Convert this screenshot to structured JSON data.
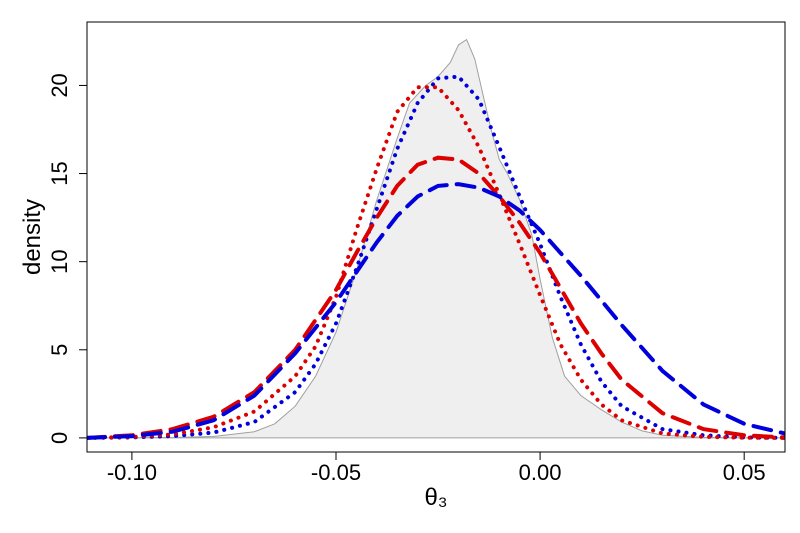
{
  "chart_data": {
    "type": "line",
    "title": "",
    "xlabel": "θ₃",
    "ylabel": "density",
    "xlim": [
      -0.111,
      0.06
    ],
    "ylim": [
      -0.8,
      23.6
    ],
    "xticks": [
      -0.1,
      -0.05,
      0.0,
      0.05
    ],
    "xtick_labels": [
      "-0.10",
      "-0.05",
      "0.00",
      "0.05"
    ],
    "yticks": [
      0,
      5,
      10,
      15,
      20
    ],
    "ytick_labels": [
      "0",
      "5",
      "10",
      "15",
      "20"
    ],
    "grid": false,
    "legend": "none",
    "series": [
      {
        "style": "filled-area",
        "color": "#efefef",
        "edge_color": "#a0a0a0",
        "x": [
          -0.111,
          -0.09,
          -0.08,
          -0.07,
          -0.065,
          -0.06,
          -0.055,
          -0.05,
          -0.045,
          -0.04,
          -0.035,
          -0.032,
          -0.028,
          -0.025,
          -0.022,
          -0.02,
          -0.018,
          -0.016,
          -0.014,
          -0.012,
          -0.01,
          -0.008,
          -0.005,
          -0.002,
          0.0,
          0.003,
          0.006,
          0.01,
          0.015,
          0.02,
          0.025,
          0.03,
          0.04,
          0.05,
          0.06
        ],
        "y": [
          0.0,
          0.02,
          0.08,
          0.35,
          0.8,
          1.8,
          3.5,
          6.0,
          9.5,
          13.5,
          17.0,
          19.0,
          20.0,
          20.5,
          21.3,
          22.3,
          22.6,
          21.5,
          19.5,
          17.5,
          15.8,
          15.0,
          13.5,
          11.5,
          9.0,
          5.7,
          3.5,
          2.4,
          1.6,
          0.9,
          0.4,
          0.15,
          0.03,
          0.0,
          0.0
        ]
      },
      {
        "style": "dotted",
        "color": "#0000dd",
        "x": [
          -0.111,
          -0.1,
          -0.09,
          -0.08,
          -0.07,
          -0.06,
          -0.055,
          -0.05,
          -0.045,
          -0.04,
          -0.035,
          -0.03,
          -0.025,
          -0.02,
          -0.015,
          -0.01,
          -0.005,
          0.0,
          0.005,
          0.01,
          0.015,
          0.02,
          0.03,
          0.04,
          0.05,
          0.06
        ],
        "y": [
          0.0,
          0.03,
          0.1,
          0.3,
          0.9,
          2.6,
          4.2,
          6.5,
          9.6,
          13.0,
          16.4,
          19.0,
          20.4,
          20.5,
          19.2,
          16.5,
          13.7,
          11.0,
          8.0,
          5.3,
          3.2,
          1.8,
          0.5,
          0.15,
          0.03,
          0.0
        ]
      },
      {
        "style": "dotted",
        "color": "#dd0000",
        "x": [
          -0.111,
          -0.1,
          -0.09,
          -0.08,
          -0.07,
          -0.06,
          -0.055,
          -0.05,
          -0.045,
          -0.04,
          -0.035,
          -0.03,
          -0.025,
          -0.02,
          -0.015,
          -0.01,
          -0.005,
          0.0,
          0.005,
          0.01,
          0.015,
          0.02,
          0.03,
          0.04,
          0.05,
          0.06
        ],
        "y": [
          0.0,
          0.05,
          0.2,
          0.6,
          1.5,
          3.5,
          5.2,
          8.0,
          11.8,
          15.3,
          18.5,
          19.9,
          19.9,
          18.6,
          16.5,
          13.8,
          11.0,
          8.1,
          5.3,
          3.3,
          1.9,
          1.0,
          0.25,
          0.06,
          0.01,
          0.0
        ]
      },
      {
        "style": "dashed",
        "color": "#dd0000",
        "x": [
          -0.111,
          -0.1,
          -0.09,
          -0.08,
          -0.07,
          -0.06,
          -0.05,
          -0.045,
          -0.04,
          -0.035,
          -0.03,
          -0.025,
          -0.02,
          -0.015,
          -0.01,
          -0.005,
          0.0,
          0.005,
          0.01,
          0.015,
          0.02,
          0.03,
          0.04,
          0.05,
          0.06
        ],
        "y": [
          0.0,
          0.15,
          0.5,
          1.2,
          2.6,
          5.0,
          8.4,
          10.5,
          12.5,
          14.3,
          15.5,
          15.9,
          15.8,
          15.0,
          13.7,
          12.2,
          10.5,
          8.5,
          6.5,
          4.8,
          3.3,
          1.4,
          0.5,
          0.15,
          0.03
        ]
      },
      {
        "style": "dashed",
        "color": "#0000dd",
        "x": [
          -0.111,
          -0.1,
          -0.09,
          -0.08,
          -0.07,
          -0.06,
          -0.05,
          -0.045,
          -0.04,
          -0.035,
          -0.03,
          -0.025,
          -0.02,
          -0.015,
          -0.01,
          -0.005,
          0.0,
          0.005,
          0.01,
          0.015,
          0.02,
          0.03,
          0.04,
          0.05,
          0.06
        ],
        "y": [
          0.0,
          0.1,
          0.35,
          1.0,
          2.4,
          4.8,
          7.7,
          9.4,
          11.1,
          12.6,
          13.7,
          14.3,
          14.4,
          14.2,
          13.7,
          12.9,
          11.8,
          10.5,
          9.2,
          7.8,
          6.4,
          3.8,
          1.9,
          0.8,
          0.25
        ]
      }
    ]
  }
}
